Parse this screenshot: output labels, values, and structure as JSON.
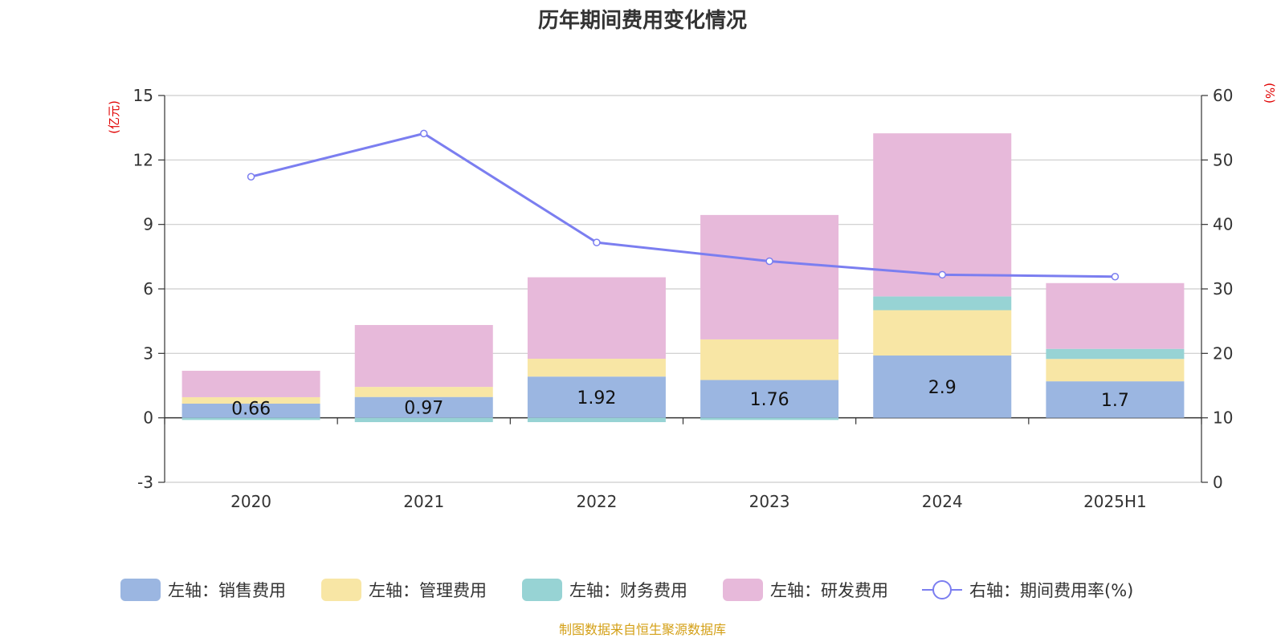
{
  "chart_data": {
    "type": "bar",
    "title": "历年期间费用变化情况",
    "categories": [
      "2020",
      "2021",
      "2022",
      "2023",
      "2024",
      "2025H1"
    ],
    "left_axis": {
      "unit_label": "(亿元)",
      "ylim": [
        -3,
        15
      ],
      "ticks": [
        -3,
        0,
        3,
        6,
        9,
        12,
        15
      ]
    },
    "right_axis": {
      "unit_label": "(%)",
      "ylim": [
        0,
        60
      ],
      "ticks": [
        0,
        10,
        20,
        30,
        40,
        50,
        60
      ]
    },
    "grid": true,
    "legend_position": "bottom",
    "series": [
      {
        "name": "左轴：销售费用",
        "type": "bar",
        "axis": "left",
        "color": "#9bb6e1",
        "values": [
          0.66,
          0.97,
          1.92,
          1.76,
          2.9,
          1.7
        ],
        "show_labels": true
      },
      {
        "name": "左轴：管理费用",
        "type": "bar",
        "axis": "left",
        "color": "#f8e6a5",
        "values": [
          0.3,
          0.47,
          0.83,
          1.89,
          2.11,
          1.04
        ]
      },
      {
        "name": "左轴：财务费用",
        "type": "bar",
        "axis": "left",
        "color": "#97d3d4",
        "values": [
          -0.1,
          -0.2,
          -0.2,
          -0.1,
          0.64,
          0.47
        ]
      },
      {
        "name": "左轴：研发费用",
        "type": "bar",
        "axis": "left",
        "color": "#e7b9da",
        "values": [
          1.23,
          2.88,
          3.79,
          5.79,
          7.59,
          3.06
        ]
      },
      {
        "name": "右轴：期间费用率(%)",
        "type": "line",
        "axis": "right",
        "color": "#7b7ef0",
        "values": [
          47.4,
          54.1,
          37.2,
          34.3,
          32.2,
          31.9
        ]
      }
    ],
    "source_note": "制图数据来自恒生聚源数据库",
    "source_color": "#d4a017"
  }
}
